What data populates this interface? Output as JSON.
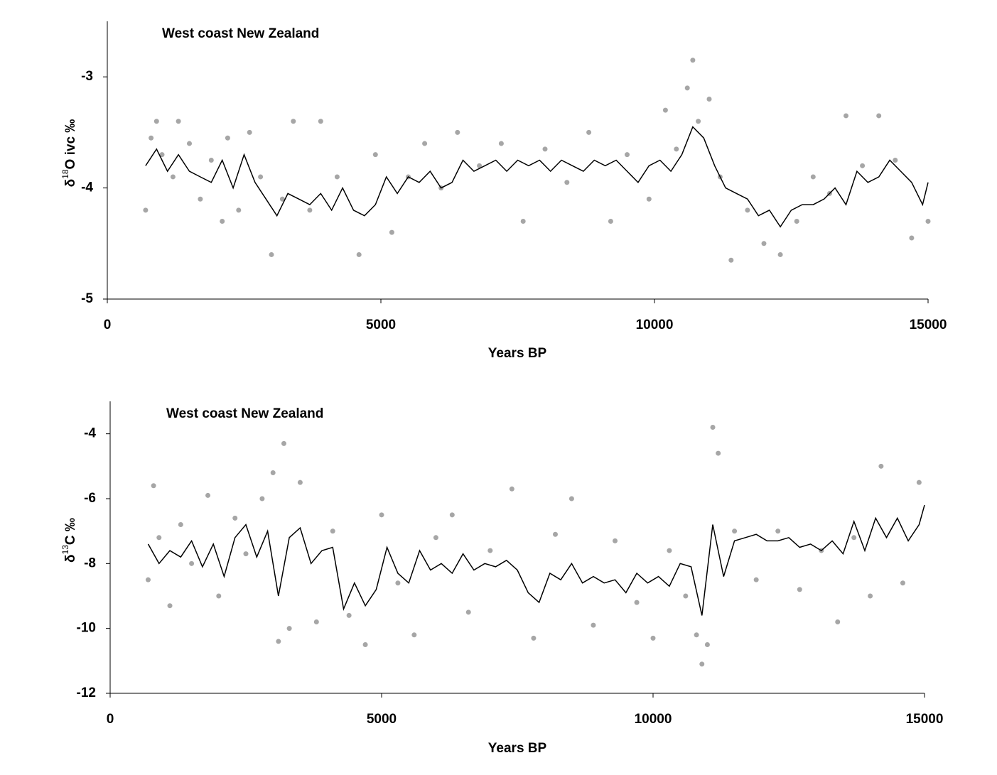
{
  "chart_data": [
    {
      "type": "scatter",
      "title": "West coast New Zealand",
      "xlabel": "Years BP",
      "ylabel": {
        "pre": "δ",
        "sup": "18",
        "post": "O ivc ‰"
      },
      "xlim": [
        0,
        15000
      ],
      "xticks": [
        0,
        5000,
        10000,
        15000
      ],
      "ylim": [
        -5,
        -2.5
      ],
      "yticks": [
        -5,
        -4,
        -3
      ],
      "series": [
        {
          "type": "scatter",
          "color": "#a6a6a6",
          "x": [
            700,
            800,
            900,
            1000,
            1200,
            1300,
            1500,
            1700,
            1900,
            2100,
            2200,
            2400,
            2600,
            2800,
            3000,
            3200,
            3400,
            3700,
            3900,
            4200,
            4600,
            4900,
            5200,
            5500,
            5800,
            6100,
            6400,
            6800,
            7200,
            7600,
            8000,
            8400,
            8800,
            9200,
            9500,
            9900,
            10200,
            10400,
            10600,
            10700,
            10800,
            11000,
            11200,
            11400,
            11700,
            12000,
            12300,
            12600,
            12900,
            13200,
            13500,
            13800,
            14100,
            14400,
            14700,
            15000
          ],
          "values": [
            -4.2,
            -3.55,
            -3.4,
            -3.7,
            -3.9,
            -3.4,
            -3.6,
            -4.1,
            -3.75,
            -4.3,
            -3.55,
            -4.2,
            -3.5,
            -3.9,
            -4.6,
            -4.1,
            -3.4,
            -4.2,
            -3.4,
            -3.9,
            -4.6,
            -3.7,
            -4.4,
            -3.9,
            -3.6,
            -4.0,
            -3.5,
            -3.8,
            -3.6,
            -4.3,
            -3.65,
            -3.95,
            -3.5,
            -4.3,
            -3.7,
            -4.1,
            -3.3,
            -3.65,
            -3.1,
            -2.85,
            -3.4,
            -3.2,
            -3.9,
            -4.65,
            -4.2,
            -4.5,
            -4.6,
            -4.3,
            -3.9,
            -4.05,
            -3.35,
            -3.8,
            -3.35,
            -3.75,
            -4.45,
            -4.3
          ]
        },
        {
          "type": "line",
          "color": "#000000",
          "x": [
            700,
            900,
            1100,
            1300,
            1500,
            1700,
            1900,
            2100,
            2300,
            2500,
            2700,
            2900,
            3100,
            3300,
            3500,
            3700,
            3900,
            4100,
            4300,
            4500,
            4700,
            4900,
            5100,
            5300,
            5500,
            5700,
            5900,
            6100,
            6300,
            6500,
            6700,
            6900,
            7100,
            7300,
            7500,
            7700,
            7900,
            8100,
            8300,
            8500,
            8700,
            8900,
            9100,
            9300,
            9500,
            9700,
            9900,
            10100,
            10300,
            10500,
            10700,
            10900,
            11100,
            11300,
            11500,
            11700,
            11900,
            12100,
            12300,
            12500,
            12700,
            12900,
            13100,
            13300,
            13500,
            13700,
            13900,
            14100,
            14300,
            14500,
            14700,
            14900,
            15000
          ],
          "values": [
            -3.8,
            -3.65,
            -3.85,
            -3.7,
            -3.85,
            -3.9,
            -3.95,
            -3.75,
            -4.0,
            -3.7,
            -3.95,
            -4.1,
            -4.25,
            -4.05,
            -4.1,
            -4.15,
            -4.05,
            -4.2,
            -4.0,
            -4.2,
            -4.25,
            -4.15,
            -3.9,
            -4.05,
            -3.9,
            -3.95,
            -3.85,
            -4.0,
            -3.95,
            -3.75,
            -3.85,
            -3.8,
            -3.75,
            -3.85,
            -3.75,
            -3.8,
            -3.75,
            -3.85,
            -3.75,
            -3.8,
            -3.85,
            -3.75,
            -3.8,
            -3.75,
            -3.85,
            -3.95,
            -3.8,
            -3.75,
            -3.85,
            -3.7,
            -3.45,
            -3.55,
            -3.8,
            -4.0,
            -4.05,
            -4.1,
            -4.25,
            -4.2,
            -4.35,
            -4.2,
            -4.15,
            -4.15,
            -4.1,
            -4.0,
            -4.15,
            -3.85,
            -3.95,
            -3.9,
            -3.75,
            -3.85,
            -3.95,
            -4.15,
            -3.95
          ]
        }
      ]
    },
    {
      "type": "scatter",
      "title": "West coast New Zealand",
      "xlabel": "Years BP",
      "ylabel": {
        "pre": "δ",
        "sup": "13",
        "post": "C ‰"
      },
      "xlim": [
        0,
        15000
      ],
      "xticks": [
        0,
        5000,
        10000,
        15000
      ],
      "ylim": [
        -12,
        -3
      ],
      "yticks": [
        -12,
        -10,
        -8,
        -6,
        -4
      ],
      "series": [
        {
          "type": "scatter",
          "color": "#a6a6a6",
          "x": [
            700,
            800,
            900,
            1100,
            1300,
            1500,
            1800,
            2000,
            2300,
            2500,
            2800,
            3000,
            3100,
            3200,
            3300,
            3500,
            3800,
            4100,
            4400,
            4700,
            5000,
            5300,
            5600,
            6000,
            6300,
            6600,
            7000,
            7400,
            7800,
            8200,
            8500,
            8900,
            9300,
            9700,
            10000,
            10300,
            10600,
            10800,
            10900,
            11000,
            11100,
            11200,
            11500,
            11900,
            12300,
            12700,
            13100,
            13400,
            13700,
            14000,
            14200,
            14600,
            14900
          ],
          "values": [
            -8.5,
            -5.6,
            -7.2,
            -9.3,
            -6.8,
            -8.0,
            -5.9,
            -9.0,
            -6.6,
            -7.7,
            -6.0,
            -5.2,
            -10.4,
            -4.3,
            -10.0,
            -5.5,
            -9.8,
            -7.0,
            -9.6,
            -10.5,
            -6.5,
            -8.6,
            -10.2,
            -7.2,
            -6.5,
            -9.5,
            -7.6,
            -5.7,
            -10.3,
            -7.1,
            -6.0,
            -9.9,
            -7.3,
            -9.2,
            -10.3,
            -7.6,
            -9.0,
            -10.2,
            -11.1,
            -10.5,
            -3.8,
            -4.6,
            -7.0,
            -8.5,
            -7.0,
            -8.8,
            -7.6,
            -9.8,
            -7.2,
            -9.0,
            -5.0,
            -8.6,
            -5.5
          ]
        },
        {
          "type": "line",
          "color": "#000000",
          "x": [
            700,
            900,
            1100,
            1300,
            1500,
            1700,
            1900,
            2100,
            2300,
            2500,
            2700,
            2900,
            3100,
            3300,
            3500,
            3700,
            3900,
            4100,
            4300,
            4500,
            4700,
            4900,
            5100,
            5300,
            5500,
            5700,
            5900,
            6100,
            6300,
            6500,
            6700,
            6900,
            7100,
            7300,
            7500,
            7700,
            7900,
            8100,
            8300,
            8500,
            8700,
            8900,
            9100,
            9300,
            9500,
            9700,
            9900,
            10100,
            10300,
            10500,
            10700,
            10900,
            11100,
            11300,
            11500,
            11700,
            11900,
            12100,
            12300,
            12500,
            12700,
            12900,
            13100,
            13300,
            13500,
            13700,
            13900,
            14100,
            14300,
            14500,
            14700,
            14900,
            15000
          ],
          "values": [
            -7.4,
            -8.0,
            -7.6,
            -7.8,
            -7.3,
            -8.1,
            -7.4,
            -8.4,
            -7.2,
            -6.8,
            -7.8,
            -7.0,
            -9.0,
            -7.2,
            -6.9,
            -8.0,
            -7.6,
            -7.5,
            -9.4,
            -8.6,
            -9.3,
            -8.8,
            -7.5,
            -8.3,
            -8.6,
            -7.6,
            -8.2,
            -8.0,
            -8.3,
            -7.7,
            -8.2,
            -8.0,
            -8.1,
            -7.9,
            -8.2,
            -8.9,
            -9.2,
            -8.3,
            -8.5,
            -8.0,
            -8.6,
            -8.4,
            -8.6,
            -8.5,
            -8.9,
            -8.3,
            -8.6,
            -8.4,
            -8.7,
            -8.0,
            -8.1,
            -9.6,
            -6.8,
            -8.4,
            -7.3,
            -7.2,
            -7.1,
            -7.3,
            -7.3,
            -7.2,
            -7.5,
            -7.4,
            -7.6,
            -7.3,
            -7.7,
            -6.7,
            -7.6,
            -6.6,
            -7.2,
            -6.6,
            -7.3,
            -6.8,
            -6.2
          ]
        }
      ]
    }
  ]
}
